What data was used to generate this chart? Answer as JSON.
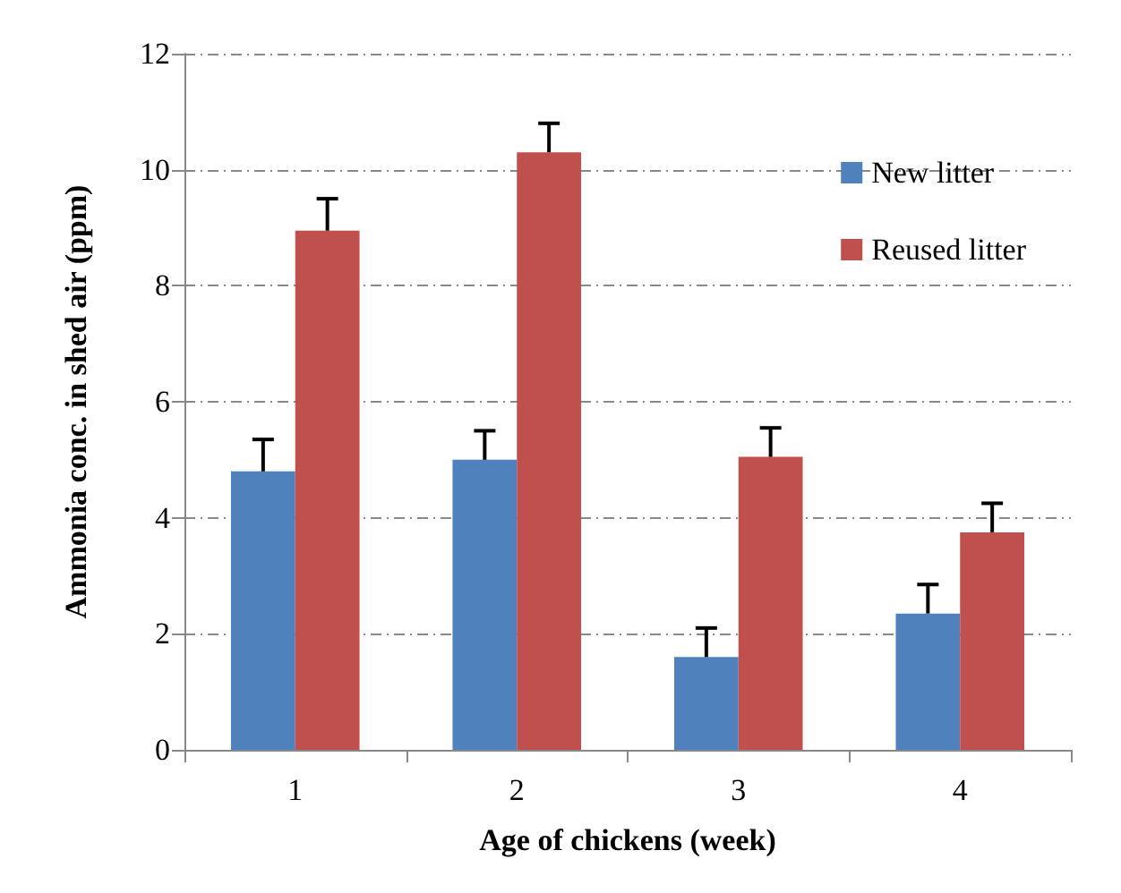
{
  "chart_data": {
    "type": "bar",
    "xlabel": "Age of chickens (week)",
    "ylabel": "Ammonia conc. in shed air (ppm)",
    "categories": [
      "1",
      "2",
      "3",
      "4"
    ],
    "series": [
      {
        "name": "New litter",
        "color": "#4f81bd",
        "values": [
          4.8,
          5.0,
          1.6,
          2.35
        ],
        "errors": [
          [
            4.8,
            5.35
          ],
          [
            5.0,
            5.5
          ],
          [
            1.6,
            2.1
          ],
          [
            2.35,
            2.85
          ]
        ]
      },
      {
        "name": "Reused litter",
        "color": "#c0504d",
        "values": [
          8.95,
          10.3,
          5.05,
          3.75
        ],
        "errors": [
          [
            8.95,
            9.5
          ],
          [
            10.3,
            10.8
          ],
          [
            5.05,
            5.55
          ],
          [
            3.75,
            4.25
          ]
        ]
      }
    ],
    "ylim": [
      0,
      12
    ],
    "yticks": [
      0,
      2,
      4,
      6,
      8,
      10,
      12
    ],
    "grid": "y",
    "legend": "top right"
  }
}
